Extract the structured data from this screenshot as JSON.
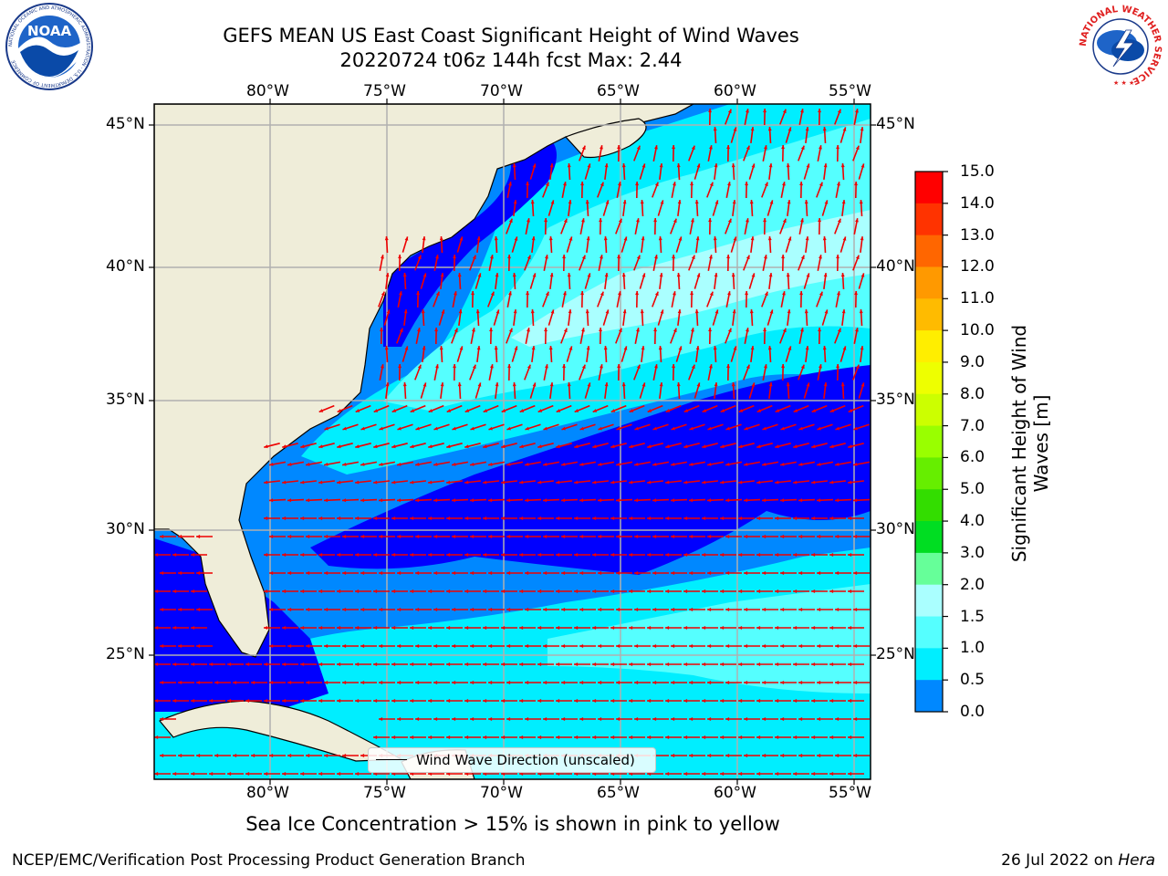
{
  "header": {
    "title_line1": "GEFS MEAN US East Coast Significant Height of Wind Waves",
    "title_line2": "20220724 t06z 144h fcst    Max: 2.44"
  },
  "logos": {
    "left": "NOAA",
    "left_ring": "NATIONAL OCEANIC AND ATMOSPHERIC ADMINISTRATION · U.S. DEPARTMENT OF COMMERCE",
    "right_ring": "NATIONAL WEATHER SERVICE"
  },
  "axes": {
    "lon_labels": [
      "80°W",
      "75°W",
      "70°W",
      "65°W",
      "60°W",
      "55°W"
    ],
    "lat_labels": [
      "45°N",
      "40°N",
      "35°N",
      "30°N",
      "25°N"
    ]
  },
  "legend": {
    "label": "Wind Wave Direction (unscaled)"
  },
  "colorbar": {
    "label": "Significant Height of Wind Waves [m]",
    "ticks": [
      "15.0",
      "14.0",
      "13.0",
      "12.0",
      "11.0",
      "10.0",
      "9.0",
      "8.0",
      "7.0",
      "6.0",
      "5.0",
      "4.0",
      "3.0",
      "2.0",
      "1.5",
      "1.0",
      "0.5",
      "0.0"
    ],
    "colors": [
      "#ff0000",
      "#ff3300",
      "#ff6600",
      "#ff9900",
      "#ffbb00",
      "#ffee00",
      "#eeff00",
      "#ccff00",
      "#99ff00",
      "#66ee00",
      "#33dd00",
      "#00dd22",
      "#66ff99",
      "#aaffff",
      "#55ffff",
      "#00eeff",
      "#0088ff",
      "#0000ff"
    ]
  },
  "note": "Sea Ice Concentration > 15% is shown in pink to yellow",
  "footer": {
    "left": "NCEP/EMC/Verification Post Processing Product Generation Branch",
    "right_prefix": "26 Jul 2022 on ",
    "right_machine": "Hera"
  }
}
